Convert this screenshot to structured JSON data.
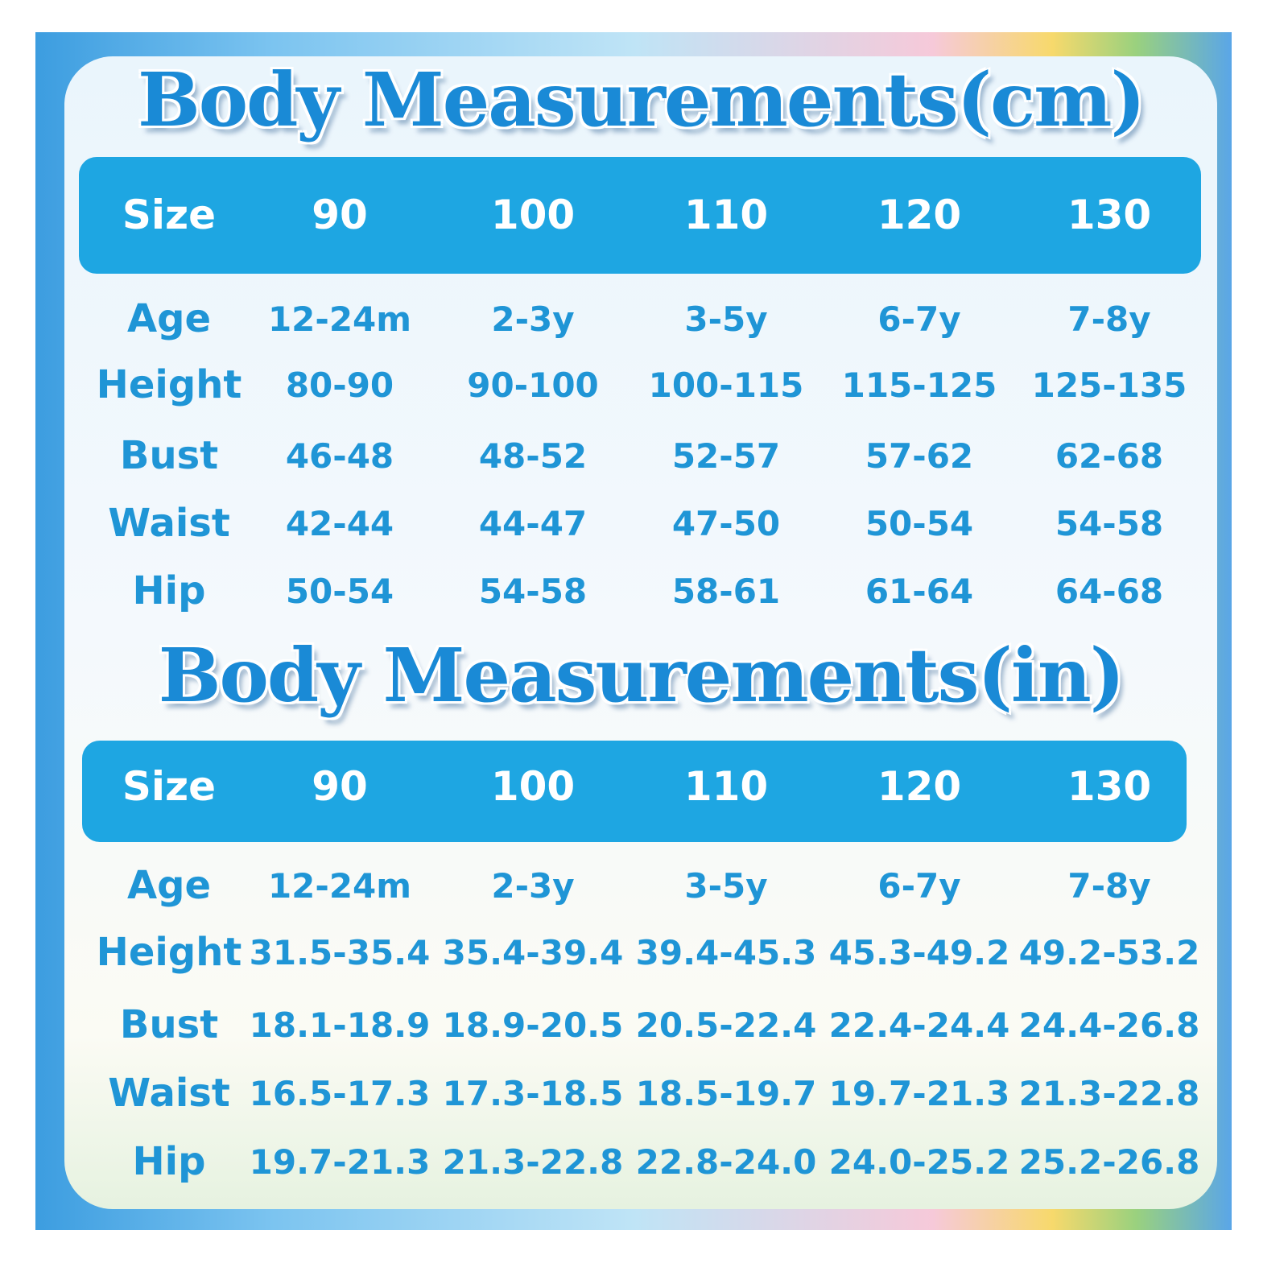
{
  "tables": [
    {
      "title": "Body Measurements(cm)",
      "header": [
        "Size",
        "90",
        "100",
        "110",
        "120",
        "130"
      ],
      "rows": [
        [
          "Age",
          "12-24m",
          "2-3y",
          "3-5y",
          "6-7y",
          "7-8y"
        ],
        [
          "Height",
          "80-90",
          "90-100",
          "100-115",
          "115-125",
          "125-135"
        ],
        [
          "Bust",
          "46-48",
          "48-52",
          "52-57",
          "57-62",
          "62-68"
        ],
        [
          "Waist",
          "42-44",
          "44-47",
          "47-50",
          "50-54",
          "54-58"
        ],
        [
          "Hip",
          "50-54",
          "54-58",
          "58-61",
          "61-64",
          "64-68"
        ]
      ]
    },
    {
      "title": "Body Measurements(in)",
      "header": [
        "Size",
        "90",
        "100",
        "110",
        "120",
        "130"
      ],
      "rows": [
        [
          "Age",
          "12-24m",
          "2-3y",
          "3-5y",
          "6-7y",
          "7-8y"
        ],
        [
          "Height",
          "31.5-35.4",
          "35.4-39.4",
          "39.4-45.3",
          "45.3-49.2",
          "49.2-53.2"
        ],
        [
          "Bust",
          "18.1-18.9",
          "18.9-20.5",
          "20.5-22.4",
          "22.4-24.4",
          "24.4-26.8"
        ],
        [
          "Waist",
          "16.5-17.3",
          "17.3-18.5",
          "18.5-19.7",
          "19.7-21.3",
          "21.3-22.8"
        ],
        [
          "Hip",
          "19.7-21.3",
          "21.3-22.8",
          "22.8-24.0",
          "24.0-25.2",
          "25.2-26.8"
        ]
      ]
    }
  ]
}
